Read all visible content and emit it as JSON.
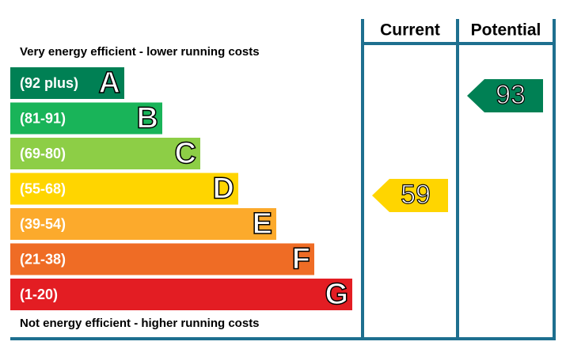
{
  "header": {
    "top_note": "Very energy efficient - lower running costs",
    "bottom_note": "Not energy efficient - higher running costs",
    "current_title": "Current",
    "potential_title": "Potential"
  },
  "bands": [
    {
      "range": "(92 plus)",
      "letter": "A",
      "color": "#008054"
    },
    {
      "range": "(81-91)",
      "letter": "B",
      "color": "#19b459"
    },
    {
      "range": "(69-80)",
      "letter": "C",
      "color": "#8dce46"
    },
    {
      "range": "(55-68)",
      "letter": "D",
      "color": "#ffd500"
    },
    {
      "range": "(39-54)",
      "letter": "E",
      "color": "#fcaa2c"
    },
    {
      "range": "(21-38)",
      "letter": "F",
      "color": "#ef6c25"
    },
    {
      "range": "(1-20)",
      "letter": "G",
      "color": "#e31d23"
    }
  ],
  "current": {
    "rating": 59,
    "color": "#ffd500"
  },
  "potential": {
    "rating": 93,
    "color": "#008054"
  }
}
